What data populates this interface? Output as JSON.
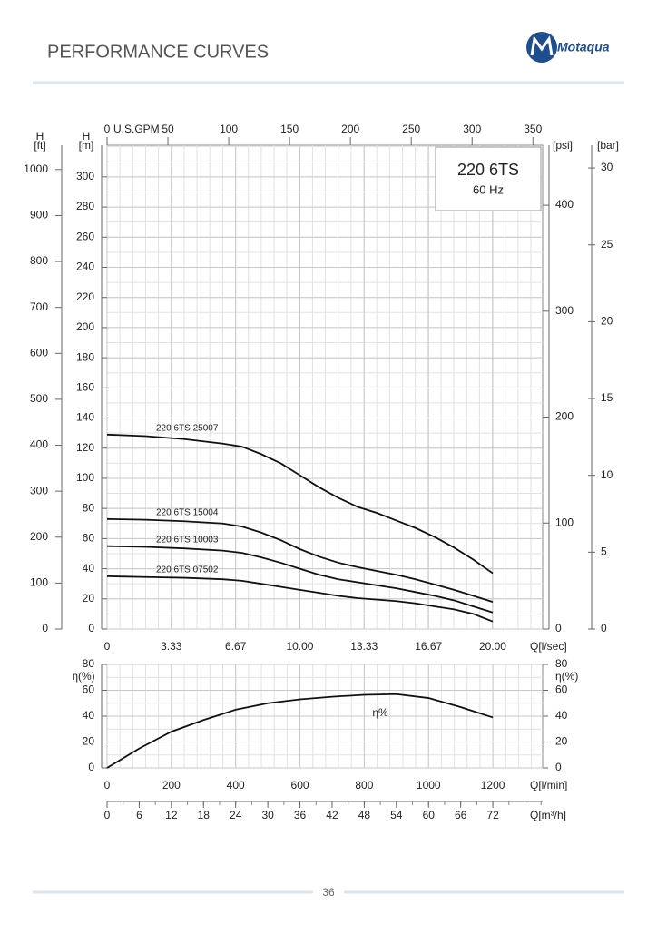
{
  "header": {
    "title": "PERFORMANCE CURVES",
    "logo": "Motaqua"
  },
  "chart_data": [
    {
      "type": "line",
      "model": "220 6TS",
      "frequency": "60 Hz",
      "x_label": "Q[l/sec]",
      "xlim": [
        0,
        22.59
      ],
      "xticks": [
        0,
        3.33,
        6.67,
        {
          "value": 10,
          "label": "10.00"
        },
        13.33,
        16.67,
        {
          "value": 20,
          "label": "20.00"
        }
      ],
      "x": [
        0,
        2,
        4,
        6,
        7,
        8,
        9,
        10,
        11,
        12,
        13,
        14,
        15,
        16,
        17,
        18,
        19,
        20
      ],
      "y_title": "H",
      "y_label": "[m]",
      "ylim": [
        0,
        321
      ],
      "yticks": [
        0,
        20,
        40,
        60,
        80,
        100,
        120,
        140,
        160,
        180,
        200,
        220,
        240,
        260,
        280,
        300
      ],
      "ft_axis": {
        "title": "H",
        "label": "[ft]",
        "lim": [
          0,
          1053
        ],
        "ticks": [
          0,
          100,
          200,
          300,
          400,
          500,
          600,
          700,
          800,
          900,
          1000
        ]
      },
      "psi_axis": {
        "label": "[psi]",
        "lim": [
          0,
          456.6
        ],
        "ticks": [
          0,
          100,
          200,
          300,
          400
        ]
      },
      "bar_axis": {
        "label": "[bar]",
        "lim": [
          0,
          31.48
        ],
        "ticks": [
          0,
          5,
          10,
          15,
          20,
          25,
          30
        ]
      },
      "gpm_axis": {
        "label": "U.S.GPM",
        "lim": [
          0,
          358
        ],
        "ticks": [
          0,
          50,
          100,
          150,
          200,
          250,
          300,
          350
        ]
      },
      "series": [
        {
          "name": "220 6TS 25007",
          "color": "#111111",
          "values": [
            129,
            128,
            126,
            123,
            121,
            116,
            110,
            102,
            94,
            87,
            81,
            77,
            72,
            67,
            61,
            54,
            46,
            37
          ]
        },
        {
          "name": "220 6TS 15004",
          "color": "#111111",
          "values": [
            73,
            72.5,
            71.5,
            70,
            68,
            64,
            59,
            53,
            48,
            44,
            41,
            38.5,
            36,
            33,
            29.5,
            26,
            22,
            18
          ]
        },
        {
          "name": "220 6TS 10003",
          "color": "#111111",
          "values": [
            55,
            54.5,
            53.5,
            52,
            50.5,
            47.5,
            44,
            40,
            36,
            33,
            31,
            29,
            27,
            24.5,
            22,
            19,
            15,
            11
          ]
        },
        {
          "name": "220 6TS 07502",
          "color": "#111111",
          "values": [
            35,
            34.5,
            34,
            33,
            32,
            30,
            28,
            26,
            24,
            22,
            20.5,
            19.5,
            18.5,
            17,
            15,
            13,
            10,
            5
          ]
        }
      ],
      "grid": true,
      "x_minor": 5,
      "y_minor": 2
    },
    {
      "type": "line",
      "x_label": "Q[l/min]",
      "xlim": [
        0,
        1355
      ],
      "xticks": [
        0,
        200,
        400,
        600,
        800,
        1000,
        1200
      ],
      "x": [
        0,
        100,
        200,
        300,
        400,
        500,
        600,
        700,
        800,
        900,
        1000,
        1100,
        1200
      ],
      "y_label": "η(%)",
      "ylim": [
        0,
        80
      ],
      "yticks": [
        0,
        20,
        40,
        60,
        80
      ],
      "y2_label": "η(%)",
      "y2lim": [
        0,
        80
      ],
      "y2ticks": [
        0,
        20,
        40,
        60,
        80
      ],
      "series": [
        {
          "name": "η%",
          "color": "#111111",
          "values": [
            0,
            15,
            28,
            37,
            45,
            50,
            53,
            55,
            56.5,
            57,
            54,
            47,
            39
          ]
        }
      ],
      "m3h_axis": {
        "label": "Q[m³/h]",
        "lim": [
          0,
          81.3
        ],
        "ticks": [
          0,
          6,
          12,
          18,
          24,
          30,
          36,
          42,
          48,
          54,
          60,
          66,
          72
        ]
      },
      "grid": true,
      "x_minor": 5,
      "y_minor": 2
    }
  ],
  "footer": {
    "page": "36"
  }
}
